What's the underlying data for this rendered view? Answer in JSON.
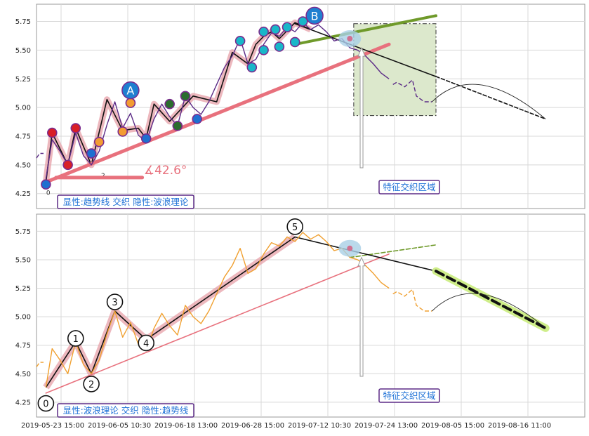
{
  "chart_data": [
    {
      "type": "line",
      "panel": "top",
      "title": "",
      "xlabel": "",
      "ylabel": "",
      "ylim": [
        4.12,
        5.9
      ],
      "yticks": [
        4.25,
        4.5,
        4.75,
        5.0,
        5.25,
        5.5,
        5.75
      ],
      "grid": true,
      "caption": "显性:趋势线 交织 隐性:波浪理论",
      "angle_label": "∡42.6°",
      "zone_label": "特征交织区域",
      "wave_labels": [
        "A",
        "B"
      ],
      "point_labels": [
        "0",
        "2"
      ],
      "price_series": [
        {
          "name": "",
          "x": [
            0.0,
            0.4,
            0.9
          ],
          "y": [
            4.56,
            4.6,
            4.6
          ]
        },
        {
          "name": "",
          "x": [
            1.2,
            2.0,
            3.0,
            4.0,
            5.0,
            6.0,
            7.0,
            8.0,
            9.0,
            10.0,
            11.0,
            12.0,
            13.0,
            14.0,
            15.0,
            16.0,
            17.0,
            18.0,
            19.0,
            20.0,
            21.0,
            22.0,
            23.0,
            24.0,
            25.0,
            26.0,
            27.0,
            28.0,
            29.0,
            30.0,
            31.0,
            32.0,
            33.0,
            34.0,
            35.0,
            36.0,
            37.0,
            38.0,
            39.0,
            40.0,
            41.0,
            42.0,
            43.0,
            44.0,
            45.0
          ],
          "y": [
            4.38,
            4.72,
            4.62,
            4.5,
            4.78,
            4.58,
            4.5,
            4.62,
            4.85,
            5.05,
            4.82,
            4.95,
            4.76,
            4.7,
            4.9,
            5.03,
            4.92,
            4.84,
            5.1,
            5.0,
            4.94,
            5.05,
            5.2,
            5.35,
            5.45,
            5.6,
            5.38,
            5.42,
            5.55,
            5.65,
            5.62,
            5.7,
            5.66,
            5.74,
            5.68,
            5.72,
            5.66,
            5.58,
            5.6,
            5.52,
            5.5,
            5.45,
            5.38,
            5.3,
            5.25
          ]
        },
        {
          "name": "",
          "x": [
            45.5,
            46.0,
            47.0,
            48.0,
            48.5,
            49.5,
            50.5
          ],
          "y": [
            5.2,
            5.22,
            5.18,
            5.24,
            5.1,
            5.05,
            5.05
          ]
        }
      ],
      "wave_path": {
        "x": [
          1.2,
          2.0,
          4.0,
          5.0,
          7.0,
          9.0,
          11.0,
          13.0,
          14.0,
          15.0,
          17.0,
          20.0,
          23.0,
          25.0,
          27.0,
          28.0,
          29.0,
          30.0,
          31.0,
          33.0,
          35.0
        ],
        "y": [
          4.35,
          4.78,
          4.5,
          4.82,
          4.5,
          5.07,
          4.8,
          4.82,
          4.73,
          5.03,
          4.88,
          5.1,
          5.05,
          5.48,
          5.38,
          5.55,
          5.62,
          5.66,
          5.6,
          5.74,
          5.68
        ]
      },
      "trend_lines": [
        {
          "name": "",
          "color": "#e8717d",
          "x": [
            1.2,
            45.0
          ],
          "y": [
            4.35,
            5.55
          ]
        },
        {
          "name": "",
          "color": "#6f9a2a",
          "x": [
            33.0,
            51.0
          ],
          "y": [
            5.55,
            5.8
          ]
        },
        {
          "name": "",
          "color": "#111111",
          "x": [
            33.0,
            51.0
          ],
          "y": [
            5.73,
            5.27
          ]
        },
        {
          "name": "",
          "color": "#111111",
          "x": [
            51.0,
            65.0
          ],
          "y": [
            5.27,
            4.9
          ]
        }
      ],
      "highlight_zone": {
        "x": [
          40.5,
          51.0
        ],
        "y": [
          4.93,
          5.73
        ]
      }
    },
    {
      "type": "line",
      "panel": "bottom",
      "title": "",
      "xlabel": "",
      "ylabel": "",
      "ylim": [
        4.12,
        5.9
      ],
      "yticks": [
        4.25,
        4.5,
        4.75,
        5.0,
        5.25,
        5.5,
        5.75
      ],
      "grid": true,
      "caption": "显性:波浪理论 交织 隐性:趋势线",
      "zone_label": "特征交织区域",
      "wave_labels": [
        "0",
        "1",
        "2",
        "3",
        "4",
        "5"
      ],
      "xticks": [
        "2019-05-23 15:00",
        "2019-06-05 10:30",
        "2019-06-18 13:00",
        "2019-06-28 15:00",
        "2019-07-12 10:30",
        "2019-07-24 13:00",
        "2019-08-05 15:00",
        "2019-08-16 11:00"
      ],
      "price_series": [
        {
          "name": "",
          "x": [
            0.0,
            0.4,
            0.9
          ],
          "y": [
            4.56,
            4.6,
            4.6
          ]
        },
        {
          "name": "",
          "x": [
            1.2,
            2.0,
            3.0,
            4.0,
            5.0,
            6.0,
            7.0,
            8.0,
            9.0,
            10.0,
            11.0,
            12.0,
            13.0,
            14.0,
            15.0,
            16.0,
            17.0,
            18.0,
            19.0,
            20.0,
            21.0,
            22.0,
            23.0,
            24.0,
            25.0,
            26.0,
            27.0,
            28.0,
            29.0,
            30.0,
            31.0,
            32.0,
            33.0,
            34.0,
            35.0,
            36.0,
            37.0,
            38.0,
            39.0,
            40.0,
            41.0,
            42.0,
            43.0,
            44.0,
            45.0
          ],
          "y": [
            4.38,
            4.72,
            4.62,
            4.5,
            4.78,
            4.58,
            4.5,
            4.62,
            4.85,
            5.05,
            4.82,
            4.95,
            4.76,
            4.7,
            4.9,
            5.03,
            4.92,
            4.84,
            5.1,
            5.0,
            4.94,
            5.05,
            5.2,
            5.35,
            5.45,
            5.6,
            5.38,
            5.42,
            5.55,
            5.65,
            5.62,
            5.7,
            5.66,
            5.74,
            5.68,
            5.72,
            5.66,
            5.58,
            5.6,
            5.52,
            5.5,
            5.45,
            5.38,
            5.3,
            5.25
          ]
        },
        {
          "name": "",
          "x": [
            45.5,
            46.0,
            47.0,
            48.0,
            48.5,
            49.5,
            50.5
          ],
          "y": [
            5.2,
            5.22,
            5.18,
            5.24,
            5.1,
            5.05,
            5.05
          ]
        }
      ],
      "wave_path": {
        "x": [
          1.2,
          5.0,
          7.0,
          10.0,
          14.0,
          33.0
        ],
        "y": [
          4.38,
          4.78,
          4.5,
          5.05,
          4.8,
          5.7
        ]
      },
      "trend_lines": [
        {
          "name": "",
          "color": "#e8717d",
          "x": [
            1.2,
            45.0
          ],
          "y": [
            4.33,
            5.55
          ]
        },
        {
          "name": "",
          "color": "#6f9a2a",
          "x": [
            40.0,
            51.0
          ],
          "y": [
            5.52,
            5.63
          ]
        },
        {
          "name": "",
          "color": "#111111",
          "x": [
            33.0,
            51.0
          ],
          "y": [
            5.7,
            5.4
          ]
        },
        {
          "name": "",
          "color": "#111111",
          "x": [
            51.0,
            65.0
          ],
          "y": [
            5.4,
            4.9
          ]
        }
      ]
    }
  ],
  "colors": {
    "price_line": "#5b2a86",
    "price_line_bottom": "#f0a030",
    "trend_red": "#e8717d",
    "trend_green": "#6f9a2a",
    "zone_fill": "#dce8cc",
    "caption_text": "#1a6fd6",
    "caption_border": "#5b2a86",
    "wave_fill": "#e7a0a8"
  }
}
